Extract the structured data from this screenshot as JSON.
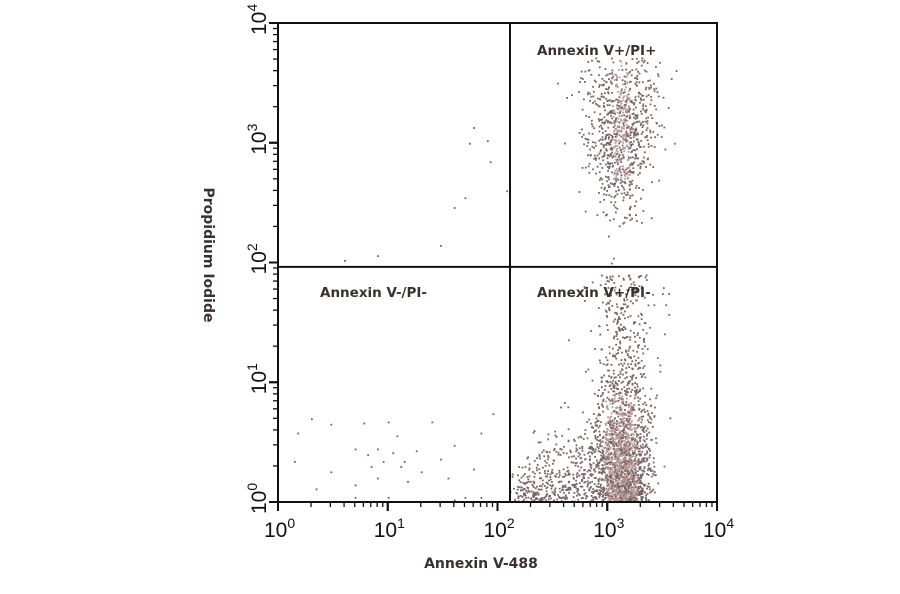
{
  "chart_data": {
    "type": "scatter",
    "title": "",
    "xlabel": "Annexin V-488",
    "ylabel": "Propidium Iodide",
    "x_scale": "log",
    "y_scale": "log",
    "xlim": [
      1,
      10000
    ],
    "ylim": [
      1,
      10000
    ],
    "grid": false,
    "x_ticks": [
      {
        "base": "10",
        "exp": "0"
      },
      {
        "base": "10",
        "exp": "1"
      },
      {
        "base": "10",
        "exp": "2"
      },
      {
        "base": "10",
        "exp": "3"
      },
      {
        "base": "10",
        "exp": "4"
      }
    ],
    "y_ticks": [
      {
        "base": "10",
        "exp": "0"
      },
      {
        "base": "10",
        "exp": "1"
      },
      {
        "base": "10",
        "exp": "2"
      },
      {
        "base": "10",
        "exp": "3"
      },
      {
        "base": "10",
        "exp": "4"
      }
    ],
    "gates": {
      "x": 130,
      "y": 92
    },
    "quadrant_labels": {
      "upper_right": "Annexin V+/PI+",
      "lower_left": "Annexin V-/PI-",
      "lower_right": "Annexin V+/PI-"
    },
    "point_color": "#7a6464",
    "dense_color": "#b89a9a",
    "sparse_points": [
      [
        1.5,
        3.8
      ],
      [
        2,
        5
      ],
      [
        1.4,
        2.2
      ],
      [
        3,
        4.5
      ],
      [
        3,
        1.8
      ],
      [
        2.2,
        1.3
      ],
      [
        5,
        2.8
      ],
      [
        6,
        4.6
      ],
      [
        6.5,
        2.5
      ],
      [
        10,
        4.7
      ],
      [
        12,
        3.6
      ],
      [
        8,
        1.6
      ],
      [
        9,
        2.2
      ],
      [
        10,
        1.1
      ],
      [
        14,
        2.2
      ],
      [
        20,
        1.8
      ],
      [
        18,
        2.7
      ],
      [
        25,
        4.7
      ],
      [
        30,
        2.3
      ],
      [
        40,
        3
      ],
      [
        35,
        1.6
      ],
      [
        70,
        3.8
      ],
      [
        90,
        5.5
      ],
      [
        60,
        1.9
      ],
      [
        70,
        1.1
      ],
      [
        5,
        1.4
      ],
      [
        7,
        2
      ],
      [
        11,
        2.6
      ],
      [
        15,
        1.5
      ],
      [
        5,
        1.1
      ],
      [
        40,
        1.05
      ],
      [
        50,
        1.1
      ],
      [
        13,
        2
      ],
      [
        8,
        2.8
      ],
      [
        4,
        105
      ],
      [
        8,
        115
      ],
      [
        30,
        140
      ],
      [
        40,
        290
      ],
      [
        50,
        350
      ],
      [
        55,
        1000
      ],
      [
        60,
        1350
      ],
      [
        80,
        1050
      ],
      [
        85,
        700
      ],
      [
        120,
        400
      ]
    ],
    "populations": [
      {
        "quadrant": "Annexin V+/PI-",
        "center": [
          1400,
          2
        ],
        "count": 2600
      },
      {
        "quadrant": "Annexin V+/PI+",
        "center": [
          1300,
          1200
        ],
        "count": 900
      }
    ]
  }
}
